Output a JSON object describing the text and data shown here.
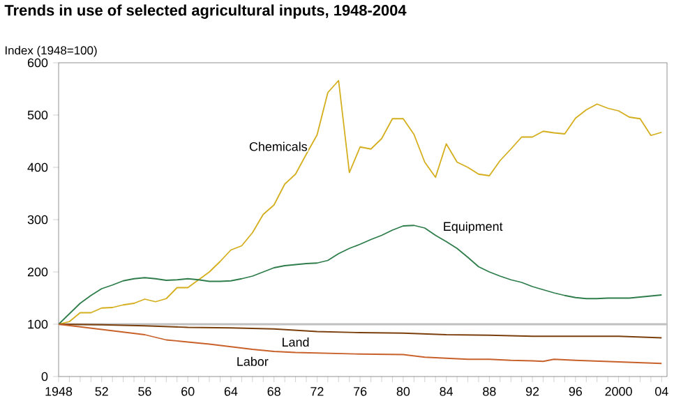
{
  "chart_data": {
    "type": "line",
    "title": "Trends in use of selected agricultural inputs, 1948-2004",
    "ylabel": "Index (1948=100)",
    "xlim": [
      1948,
      2004.5
    ],
    "ylim": [
      0,
      600
    ],
    "yticks": [
      0,
      100,
      200,
      300,
      400,
      500,
      600
    ],
    "xticks": [
      1948,
      {
        "value": 1952,
        "label": "52"
      },
      {
        "value": 1956,
        "label": "56"
      },
      {
        "value": 1960,
        "label": "60"
      },
      {
        "value": 1964,
        "label": "64"
      },
      {
        "value": 1968,
        "label": "68"
      },
      {
        "value": 1972,
        "label": "72"
      },
      {
        "value": 1976,
        "label": "76"
      },
      {
        "value": 1980,
        "label": "80"
      },
      {
        "value": 1984,
        "label": "84"
      },
      {
        "value": 1988,
        "label": "88"
      },
      {
        "value": 1992,
        "label": "92"
      },
      {
        "value": 1996,
        "label": "96"
      },
      2000,
      {
        "value": 2004,
        "label": "04"
      }
    ],
    "grid": false,
    "legend": false,
    "marker": "none",
    "ref_lines": [
      {
        "axis": "y",
        "value": 100,
        "color": "#c0c0c0"
      }
    ],
    "series": [
      {
        "name": "Chemicals",
        "color": "#d4ae1c",
        "x": [
          1948,
          1949,
          1950,
          1951,
          1952,
          1953,
          1954,
          1955,
          1956,
          1957,
          1958,
          1959,
          1960,
          1961,
          1962,
          1963,
          1964,
          1965,
          1966,
          1967,
          1968,
          1969,
          1970,
          1971,
          1972,
          1973,
          1974,
          1975,
          1976,
          1977,
          1978,
          1979,
          1980,
          1981,
          1982,
          1983,
          1984,
          1985,
          1986,
          1987,
          1988,
          1989,
          1990,
          1991,
          1992,
          1993,
          1994,
          1995,
          1996,
          1997,
          1998,
          1999,
          2000,
          2001,
          2002,
          2003,
          2004
        ],
        "values": [
          100,
          105,
          122,
          122,
          131,
          132,
          137,
          140,
          148,
          143,
          149,
          170,
          170,
          185,
          200,
          220,
          242,
          250,
          275,
          310,
          328,
          368,
          387,
          425,
          462,
          543,
          566,
          390,
          439,
          435,
          455,
          493,
          493,
          463,
          410,
          381,
          445,
          410,
          400,
          387,
          384,
          413,
          435,
          458,
          458,
          469,
          466,
          464,
          494,
          510,
          521,
          513,
          508,
          496,
          493,
          461,
          467
        ]
      },
      {
        "name": "Equipment",
        "color": "#2e7d4a",
        "x": [
          1948,
          1949,
          1950,
          1951,
          1952,
          1953,
          1954,
          1955,
          1956,
          1957,
          1958,
          1959,
          1960,
          1961,
          1962,
          1963,
          1964,
          1965,
          1966,
          1967,
          1968,
          1969,
          1970,
          1971,
          1972,
          1973,
          1974,
          1975,
          1976,
          1977,
          1978,
          1979,
          1980,
          1981,
          1982,
          1983,
          1984,
          1985,
          1986,
          1987,
          1988,
          1989,
          1990,
          1991,
          1992,
          1993,
          1994,
          1995,
          1996,
          1997,
          1998,
          1999,
          2000,
          2001,
          2002,
          2003,
          2004
        ],
        "values": [
          100,
          120,
          140,
          155,
          168,
          175,
          183,
          187,
          189,
          187,
          184,
          185,
          187,
          185,
          182,
          182,
          183,
          187,
          192,
          200,
          208,
          212,
          214,
          216,
          217,
          222,
          235,
          245,
          253,
          262,
          270,
          280,
          288,
          289,
          284,
          270,
          258,
          245,
          228,
          210,
          200,
          192,
          185,
          180,
          172,
          166,
          160,
          155,
          151,
          149,
          149,
          150,
          150,
          150,
          152,
          154,
          156
        ]
      },
      {
        "name": "Land",
        "color": "#7a3e0c",
        "x": [
          1948,
          1952,
          1956,
          1960,
          1964,
          1968,
          1972,
          1976,
          1980,
          1984,
          1988,
          1992,
          1996,
          2000,
          2004
        ],
        "values": [
          100,
          99,
          97,
          94,
          93,
          91,
          86,
          84,
          83,
          80,
          79,
          77,
          77,
          77,
          74
        ]
      },
      {
        "name": "Labor",
        "color": "#c8602a",
        "x": [
          1948,
          1950,
          1952,
          1954,
          1956,
          1958,
          1960,
          1962,
          1964,
          1966,
          1968,
          1970,
          1972,
          1976,
          1980,
          1982,
          1984,
          1986,
          1988,
          1990,
          1992,
          1993,
          1994,
          1996,
          2000,
          2004
        ],
        "values": [
          100,
          95,
          90,
          85,
          80,
          70,
          66,
          62,
          57,
          52,
          48,
          46,
          45,
          43,
          42,
          37,
          35,
          33,
          33,
          31,
          30,
          29,
          33,
          31,
          28,
          25
        ]
      }
    ]
  }
}
